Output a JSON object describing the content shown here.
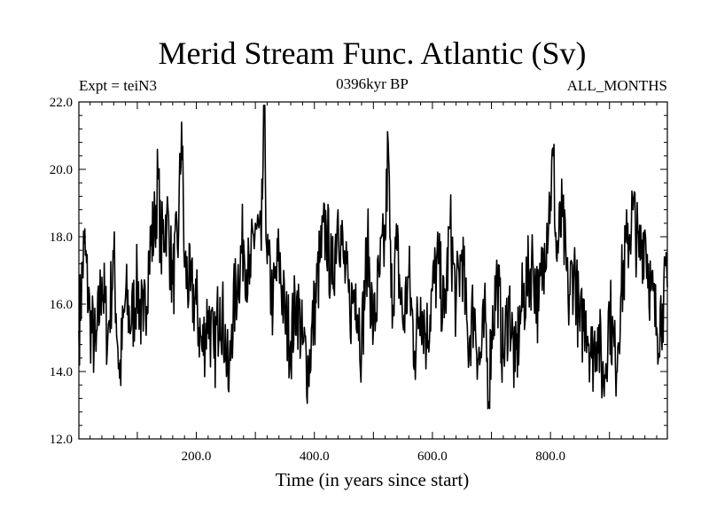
{
  "chart_data": {
    "type": "line",
    "title": "Merid Stream Func. Atlantic (Sv)",
    "experiment_label": "Expt = teiN3",
    "subtitle": "0396kyr BP",
    "period_label": "ALL_MONTHS",
    "xlabel": "Time (in years since start)",
    "ylabel": "",
    "xlim": [
      1,
      998
    ],
    "ylim": [
      12,
      22
    ],
    "xticks": [
      200,
      400,
      600,
      800
    ],
    "xtick_labels": [
      "200.0",
      "400.0",
      "600.0",
      "800.0"
    ],
    "yticks": [
      12,
      14,
      16,
      18,
      20,
      22
    ],
    "ytick_labels": [
      "12.0",
      "14.0",
      "16.0",
      "18.0",
      "20.0",
      "22.0"
    ],
    "grid": false,
    "line_color": "#000000",
    "series": [
      {
        "x": [
          1,
          10,
          20,
          30,
          40,
          50,
          60,
          70,
          80,
          90,
          100,
          110,
          120,
          130,
          135,
          140,
          150,
          160,
          170,
          175,
          180,
          190,
          200,
          210,
          220,
          230,
          240,
          250,
          255,
          260,
          270,
          280,
          290,
          300,
          310,
          315,
          320,
          330,
          340,
          350,
          360,
          370,
          380,
          390,
          400,
          410,
          420,
          430,
          440,
          450,
          460,
          470,
          480,
          490,
          500,
          510,
          520,
          525,
          530,
          540,
          550,
          560,
          570,
          580,
          590,
          600,
          610,
          620,
          630,
          640,
          650,
          660,
          670,
          680,
          690,
          695,
          700,
          710,
          720,
          730,
          740,
          750,
          760,
          770,
          780,
          790,
          800,
          805,
          810,
          820,
          830,
          840,
          850,
          860,
          870,
          880,
          890,
          900,
          910,
          920,
          930,
          940,
          950,
          960,
          970,
          980,
          990,
          998
        ],
        "y": [
          15.2,
          17.8,
          15.5,
          14.6,
          16.8,
          15.0,
          17.4,
          13.8,
          16.2,
          15.4,
          16.6,
          15.2,
          17.5,
          18.4,
          19.8,
          17.6,
          18.7,
          16.6,
          18.2,
          21.4,
          17.1,
          16.4,
          16.0,
          14.6,
          15.8,
          14.4,
          16.2,
          14.8,
          13.4,
          15.4,
          16.8,
          17.9,
          16.6,
          18.4,
          17.6,
          21.8,
          17.2,
          16.0,
          17.4,
          15.6,
          14.9,
          16.2,
          14.8,
          14.1,
          15.8,
          17.4,
          18.3,
          16.6,
          18.8,
          17.2,
          15.8,
          16.6,
          14.8,
          17.8,
          15.2,
          16.8,
          17.9,
          20.8,
          16.2,
          17.6,
          15.4,
          16.8,
          14.6,
          16.2,
          15.0,
          16.4,
          17.2,
          15.6,
          18.3,
          16.0,
          17.6,
          14.8,
          15.9,
          14.2,
          15.5,
          13.1,
          15.2,
          16.8,
          14.4,
          16.1,
          14.0,
          15.8,
          16.6,
          17.3,
          15.8,
          17.8,
          19.2,
          20.4,
          17.4,
          18.6,
          16.1,
          17.2,
          15.2,
          15.8,
          14.4,
          15.3,
          13.6,
          15.9,
          14.2,
          16.4,
          17.8,
          18.8,
          17.4,
          18.2,
          16.4,
          15.3,
          16.0,
          16.5
        ]
      }
    ]
  }
}
